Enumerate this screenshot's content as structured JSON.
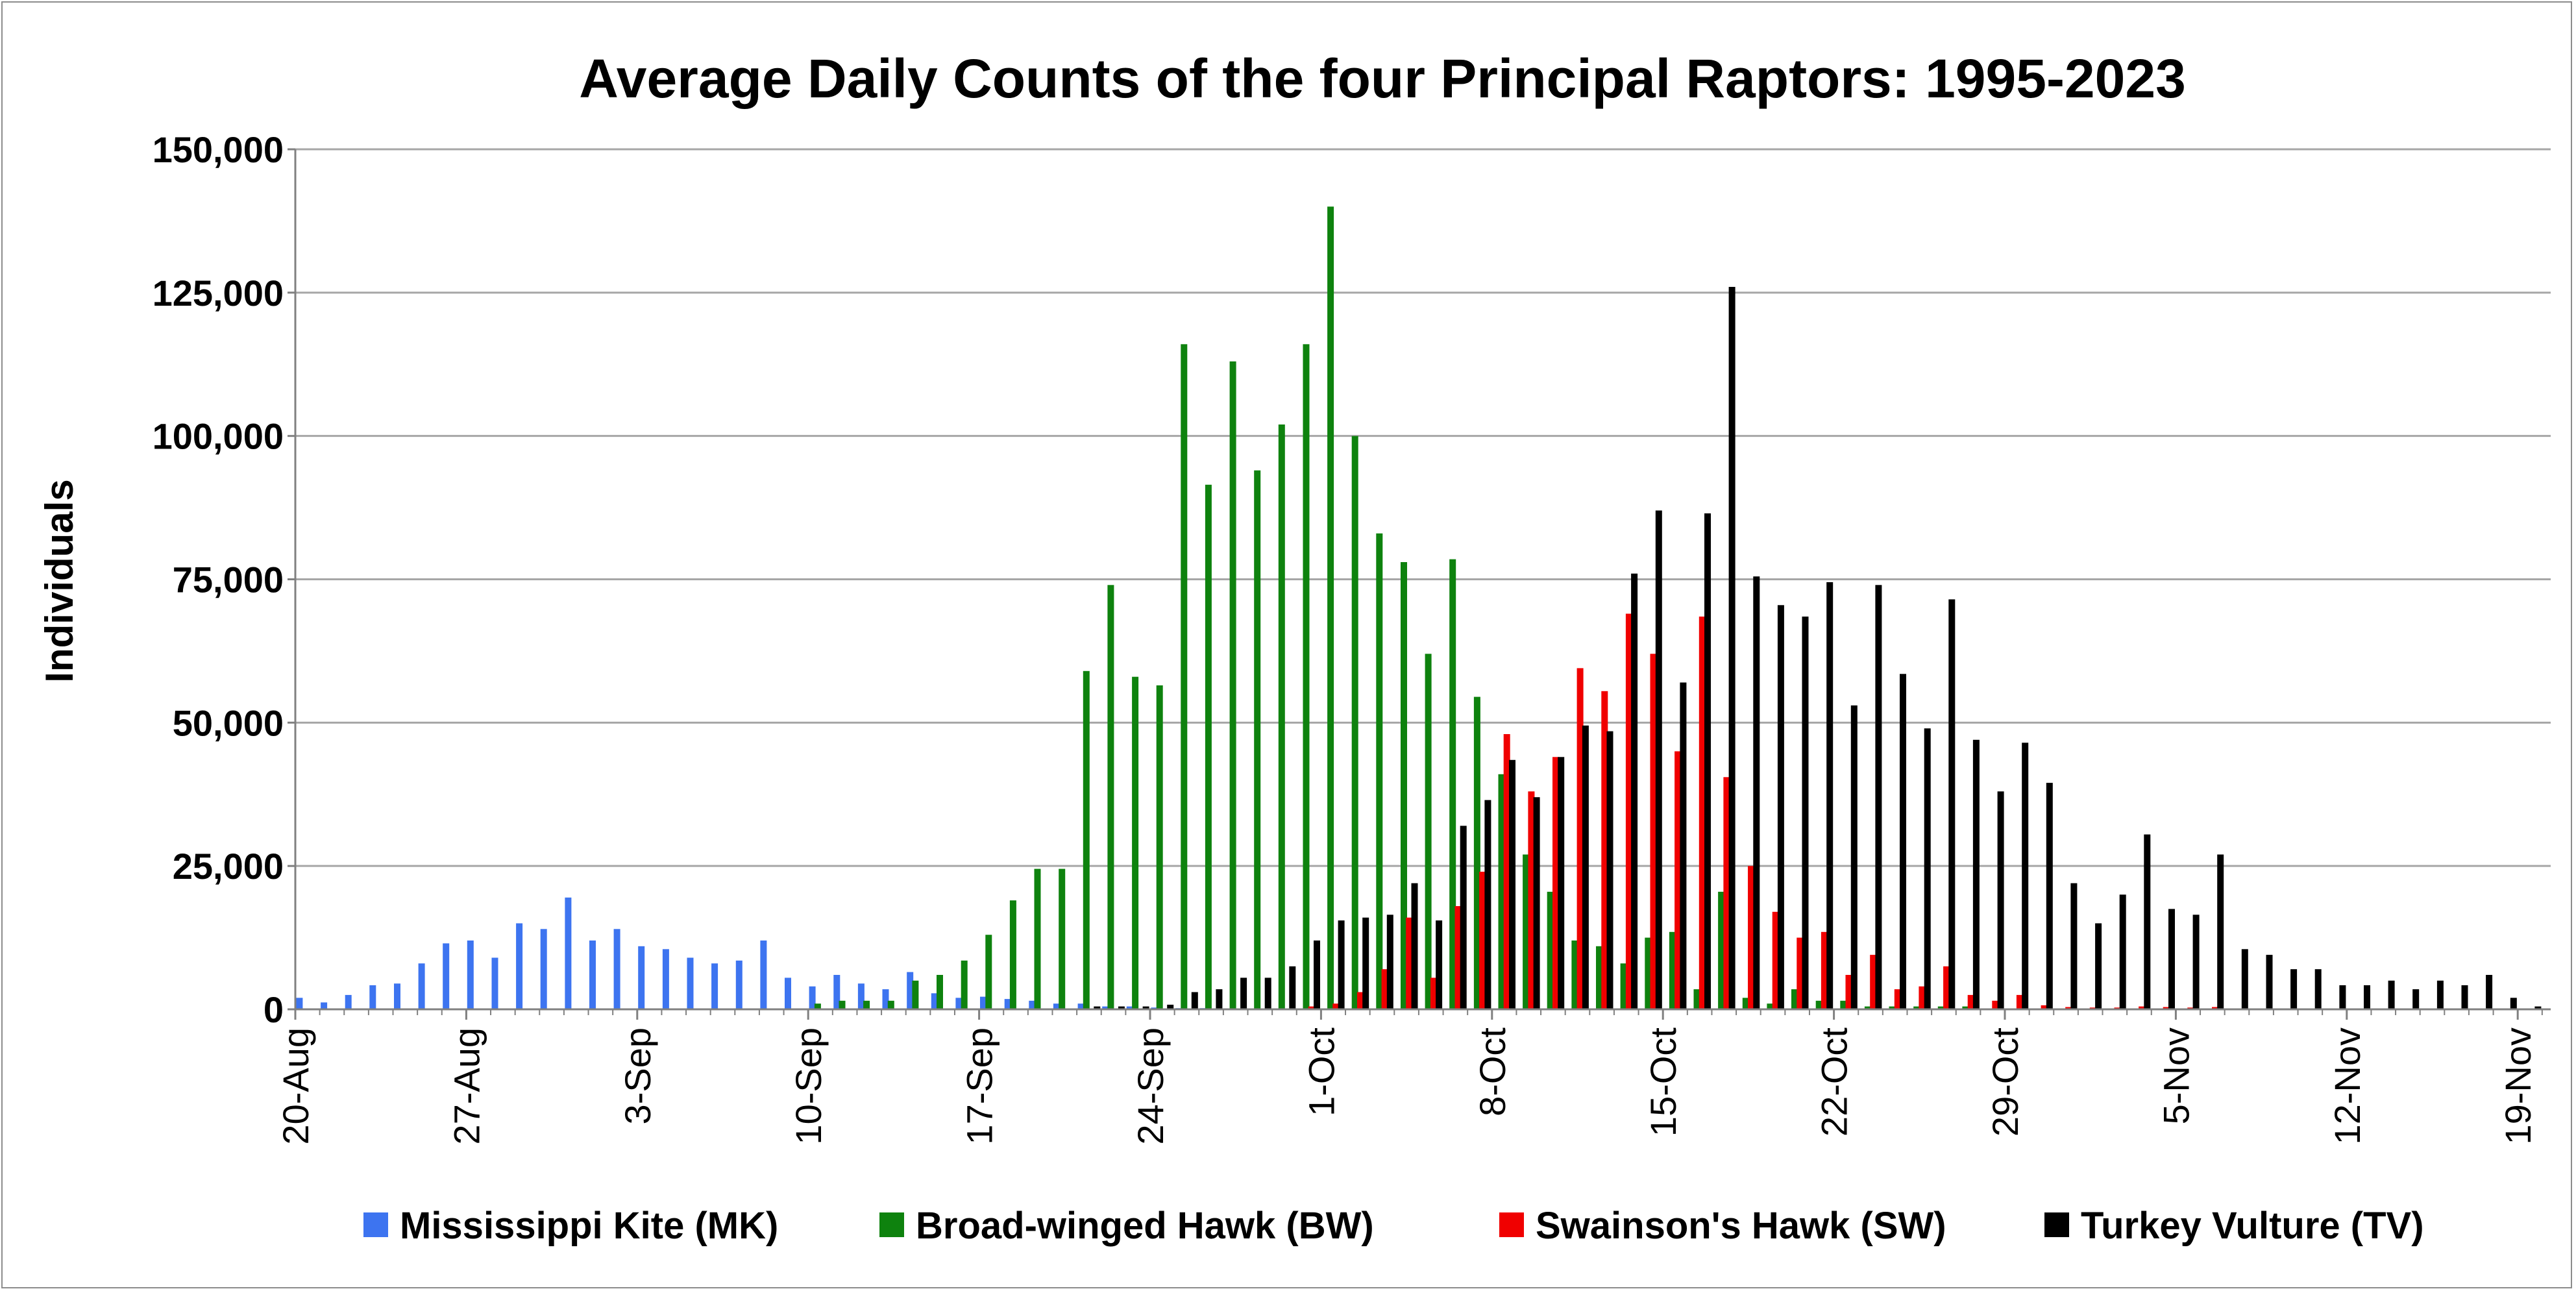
{
  "chart_data": {
    "type": "bar",
    "title": "Average Daily Counts of the four Principal Raptors: 1995-2023",
    "xlabel": "",
    "ylabel": "Individuals",
    "ylim": [
      0,
      150000
    ],
    "yticks": [
      0,
      25000,
      50000,
      75000,
      100000,
      125000,
      150000
    ],
    "ytick_labels": [
      "0",
      "25,000",
      "50,000",
      "75,000",
      "100,000",
      "125,000",
      "150,000"
    ],
    "xtick_labels": [
      "20-Aug",
      "27-Aug",
      "3-Sep",
      "10-Sep",
      "17-Sep",
      "24-Sep",
      "1-Oct",
      "8-Oct",
      "15-Oct",
      "22-Oct",
      "29-Oct",
      "5-Nov",
      "12-Nov",
      "19-Nov"
    ],
    "start_date": "20-Aug",
    "num_days": 92,
    "legend_position": "bottom",
    "series": [
      {
        "name": "Mississippi Kite (MK)",
        "color": "#3d74f0",
        "values": [
          2000,
          1200,
          2500,
          4200,
          4500,
          8000,
          11500,
          12000,
          9000,
          15000,
          14000,
          19500,
          12000,
          14000,
          11000,
          10500,
          9000,
          8000,
          8500,
          12000,
          5500,
          4000,
          6000,
          4500,
          3500,
          6500,
          2800,
          2000,
          2200,
          1800,
          1500,
          1000,
          1000,
          500,
          500,
          300,
          200,
          200,
          100,
          100,
          100,
          0,
          0,
          0,
          0,
          0,
          0,
          0,
          0,
          0,
          0,
          0,
          0,
          0,
          0,
          0,
          0,
          0,
          0,
          0,
          0,
          0,
          0,
          0,
          0,
          0,
          0,
          0,
          0,
          0,
          0,
          0,
          0,
          0,
          0,
          0,
          0,
          0,
          0,
          0,
          0,
          0,
          0,
          0,
          0,
          0,
          0,
          0,
          0,
          0,
          0,
          0
        ]
      },
      {
        "name": "Broad-winged Hawk (BW)",
        "color": "#0e820e",
        "values": [
          0,
          0,
          0,
          0,
          0,
          0,
          0,
          0,
          0,
          0,
          0,
          0,
          0,
          0,
          0,
          0,
          0,
          0,
          0,
          0,
          0,
          1000,
          1500,
          1500,
          1500,
          5000,
          6000,
          8500,
          13000,
          19000,
          24500,
          24500,
          59000,
          74000,
          58000,
          56500,
          116000,
          91500,
          113000,
          94000,
          102000,
          116000,
          140000,
          100000,
          83000,
          78000,
          62000,
          78500,
          54500,
          41000,
          27000,
          20500,
          12000,
          11000,
          8000,
          12500,
          13500,
          3500,
          20500,
          2000,
          1000,
          3500,
          1500,
          1500,
          500,
          500,
          500,
          500,
          500,
          0,
          0,
          0,
          0,
          0,
          0,
          0,
          0,
          0,
          0,
          0,
          0,
          0,
          0,
          0,
          0,
          0,
          0,
          0,
          0,
          0,
          0,
          0
        ]
      },
      {
        "name": "Swainson's Hawk (SW)",
        "color": "#f00000",
        "values": [
          0,
          0,
          0,
          0,
          0,
          0,
          0,
          0,
          0,
          0,
          0,
          0,
          0,
          0,
          0,
          0,
          0,
          0,
          0,
          0,
          0,
          0,
          0,
          0,
          0,
          0,
          0,
          0,
          0,
          0,
          0,
          0,
          0,
          0,
          0,
          0,
          0,
          0,
          0,
          0,
          0,
          500,
          1000,
          3000,
          7000,
          16000,
          5500,
          18000,
          24000,
          48000,
          38000,
          44000,
          59500,
          55500,
          69000,
          62000,
          45000,
          68500,
          40500,
          25000,
          17000,
          12500,
          13500,
          6000,
          9500,
          3500,
          4000,
          7500,
          2500,
          1500,
          2500,
          700,
          400,
          300,
          300,
          500,
          400,
          300,
          400,
          100,
          100,
          100,
          100,
          0,
          0,
          0,
          0,
          0,
          0,
          0,
          0,
          0
        ]
      },
      {
        "name": "Turkey Vulture (TV)",
        "color": "#000000",
        "values": [
          0,
          0,
          0,
          0,
          0,
          0,
          0,
          0,
          0,
          0,
          0,
          0,
          0,
          0,
          0,
          0,
          0,
          0,
          0,
          0,
          0,
          0,
          0,
          0,
          0,
          0,
          0,
          0,
          0,
          0,
          0,
          0,
          500,
          500,
          500,
          800,
          3000,
          3500,
          5500,
          5500,
          7500,
          12000,
          15500,
          16000,
          16500,
          22000,
          15500,
          32000,
          36500,
          43500,
          37000,
          44000,
          49500,
          48500,
          76000,
          87000,
          57000,
          86500,
          126000,
          75500,
          70500,
          68500,
          74500,
          53000,
          74000,
          58500,
          49000,
          71500,
          47000,
          38000,
          46500,
          39500,
          22000,
          15000,
          20000,
          30500,
          17500,
          16500,
          27000,
          10500,
          9500,
          7000,
          7000,
          4200,
          4200,
          5000,
          3500,
          5000,
          4200,
          6000,
          2000,
          500
        ]
      }
    ]
  }
}
